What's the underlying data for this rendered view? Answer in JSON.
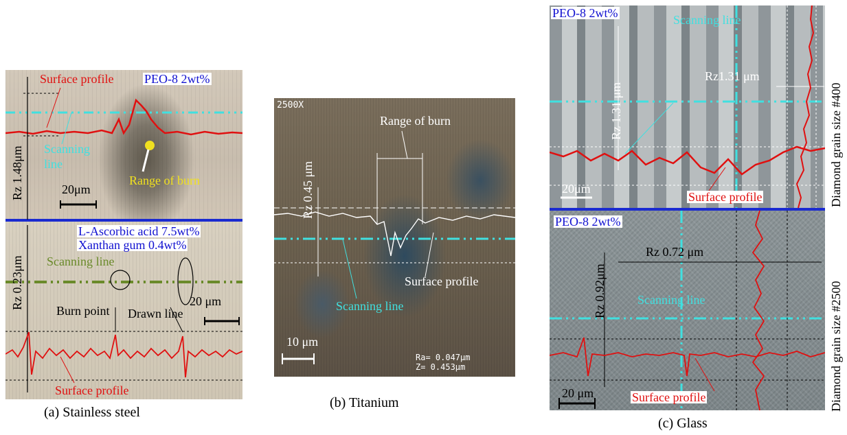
{
  "panel_a": {
    "top": {
      "surface_profile": "Surface profile",
      "material": "PEO-8 2wt%",
      "rz": "Rz 1.48μm",
      "scanning": "Scanning",
      "line": "line",
      "scale": "20μm",
      "range_of_burn": "Range of burn"
    },
    "bottom": {
      "material_line1": "L-Ascorbic acid 7.5wt%",
      "material_line2": "Xanthan gum 0.4wt%",
      "scanning_line": "Scanning line",
      "rz": "Rz 0.23μm",
      "scale": "20 μm",
      "burn_point": "Burn point",
      "drawn_line": "Drawn line",
      "surface_profile": "Surface profile"
    },
    "caption": "(a)  Stainless steel"
  },
  "panel_b": {
    "magnification": "2500X",
    "range_of_burn": "Range of burn",
    "rz": "Rz 0.45 μm",
    "surface_profile": "Surface profile",
    "scanning_line": "Scanning line",
    "scale": "10 μm",
    "ra": "Ra=  0.047μm",
    "z": "Z=   0.453μm",
    "caption": "(b)  Titanium"
  },
  "panel_c": {
    "top": {
      "material": "PEO-8 2wt%",
      "scanning_line": "Scanning line",
      "rz_vertical": "Rz 1.31 μm",
      "rz_horizontal": "Rz1.31 μm",
      "scale": "20μm",
      "surface_profile": "Surface profile",
      "grain": "Diamond grain size #400"
    },
    "bottom": {
      "material": "PEO-8 2wt%",
      "rz_horizontal": "Rz 0.72 μm",
      "rz_vertical": "Rz 0.92μm",
      "scanning_line": "Scanning line",
      "scale": "20 μm",
      "surface_profile": "Surface profile",
      "grain": "Diamond grain size #2500"
    },
    "caption": "(c) Glass"
  },
  "colors": {
    "profile_red": "#e01010",
    "scan_cyan": "#40e0e0",
    "scan_green": "#6a8a2a",
    "divider_blue": "#1a2ad0"
  }
}
